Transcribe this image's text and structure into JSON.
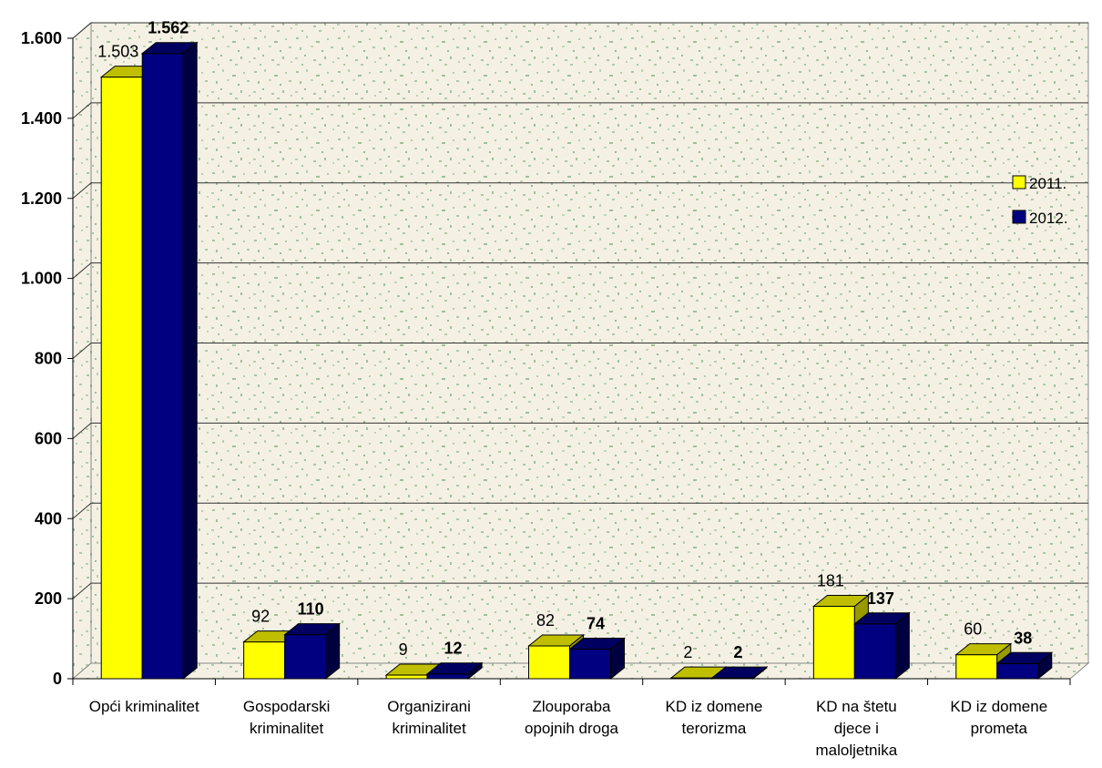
{
  "chart_data": {
    "type": "bar",
    "categories": [
      [
        "Opći kriminalitet"
      ],
      [
        "Gospodarski",
        "kriminalitet"
      ],
      [
        "Organizirani",
        "kriminalitet"
      ],
      [
        "Zlouporaba",
        "opojnih droga"
      ],
      [
        "KD iz domene",
        "terorizma"
      ],
      [
        "KD na štetu",
        "djece i",
        "maloljetnika"
      ],
      [
        "KD iz domene",
        "prometa"
      ]
    ],
    "series": [
      {
        "name": "2011.",
        "values": [
          1503,
          92,
          9,
          82,
          2,
          181,
          60
        ],
        "labels": [
          "1.503",
          "92",
          "9",
          "82",
          "2",
          "181",
          "60"
        ],
        "color": "#FFFF00",
        "top_color": "#BFBF00",
        "side_color": "#999900",
        "label_bold": false
      },
      {
        "name": "2012.",
        "values": [
          1562,
          110,
          12,
          74,
          2,
          137,
          38
        ],
        "labels": [
          "1.562",
          "110",
          "12",
          "74",
          "2",
          "137",
          "38"
        ],
        "color": "#000080",
        "top_color": "#000060",
        "side_color": "#000040",
        "label_bold": true
      }
    ],
    "yticks": [
      {
        "value": 0,
        "label": "0"
      },
      {
        "value": 200,
        "label": "200"
      },
      {
        "value": 400,
        "label": "400"
      },
      {
        "value": 600,
        "label": "600"
      },
      {
        "value": 800,
        "label": "800"
      },
      {
        "value": 1000,
        "label": "1.000"
      },
      {
        "value": 1200,
        "label": "1.200"
      },
      {
        "value": 1400,
        "label": "1.400"
      },
      {
        "value": 1600,
        "label": "1.600"
      }
    ],
    "ylim": [
      0,
      1600
    ],
    "title": "",
    "xlabel": "",
    "ylabel": "",
    "grid": true,
    "legend_position": "right",
    "background_color": "#F4F1E4",
    "grid_color": "#333333"
  }
}
